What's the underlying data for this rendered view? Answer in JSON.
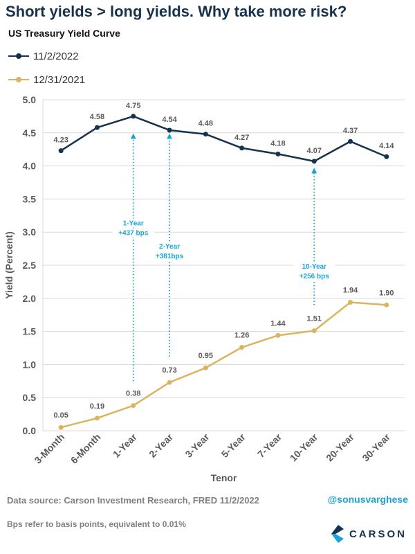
{
  "headline": "Short yields > long yields. Why take more risk?",
  "colors": {
    "headline": "#17324d",
    "series_2022": "#17324d",
    "series_2021": "#d9b562",
    "annotation": "#1aa3d9",
    "axis_text": "#595959",
    "grid": "#d9d9d9"
  },
  "chart_data": {
    "type": "line",
    "title": "US Treasury Yield Curve",
    "xlabel": "Tenor",
    "ylabel": "Yield (Percent)",
    "ylim": [
      0,
      5
    ],
    "yticks": [
      "0.0",
      "0.5",
      "1.0",
      "1.5",
      "2.0",
      "2.5",
      "3.0",
      "3.5",
      "4.0",
      "4.5",
      "5.0"
    ],
    "grid": "horizontal",
    "legend_position": "top-left",
    "categories": [
      "3-Month",
      "6-Month",
      "1-Year",
      "2-Year",
      "3-Year",
      "5-Year",
      "7-Year",
      "10-Year",
      "20-Year",
      "30-Year"
    ],
    "series": [
      {
        "name": "11/2/2022",
        "values": [
          4.23,
          4.58,
          4.75,
          4.54,
          4.48,
          4.27,
          4.18,
          4.07,
          4.37,
          4.14
        ],
        "labels": [
          "4.23",
          "4.58",
          "4.75",
          "4.54",
          "4.48",
          "4.27",
          "4.18",
          "4.07",
          "4.37",
          "4.14"
        ]
      },
      {
        "name": "12/31/2021",
        "values": [
          0.05,
          0.19,
          0.38,
          0.73,
          0.95,
          1.26,
          1.44,
          1.51,
          1.94,
          1.9
        ],
        "labels": [
          "0.05",
          "0.19",
          "0.38",
          "0.73",
          "0.95",
          "1.26",
          "1.44",
          "1.51",
          "1.94",
          "1.90"
        ]
      }
    ],
    "annotations": [
      {
        "category": "1-Year",
        "from": 0.75,
        "to": 4.45,
        "lines": [
          "1-Year",
          "+437 bps"
        ],
        "label_y": 3.1
      },
      {
        "category": "2-Year",
        "from": 1.12,
        "to": 4.45,
        "lines": [
          "2-Year",
          "+381bps"
        ],
        "label_y": 2.75
      },
      {
        "category": "10-Year",
        "from": 1.9,
        "to": 3.93,
        "lines": [
          "10-Year",
          "+256 bps"
        ],
        "label_y": 2.45
      }
    ]
  },
  "footer": {
    "source": "Data source: Carson Investment Research, FRED   11/2/2022",
    "handle": "@sonusvarghese",
    "note": "Bps refer to basis points, equivalent to 0.01%",
    "brand": "CARSON"
  }
}
